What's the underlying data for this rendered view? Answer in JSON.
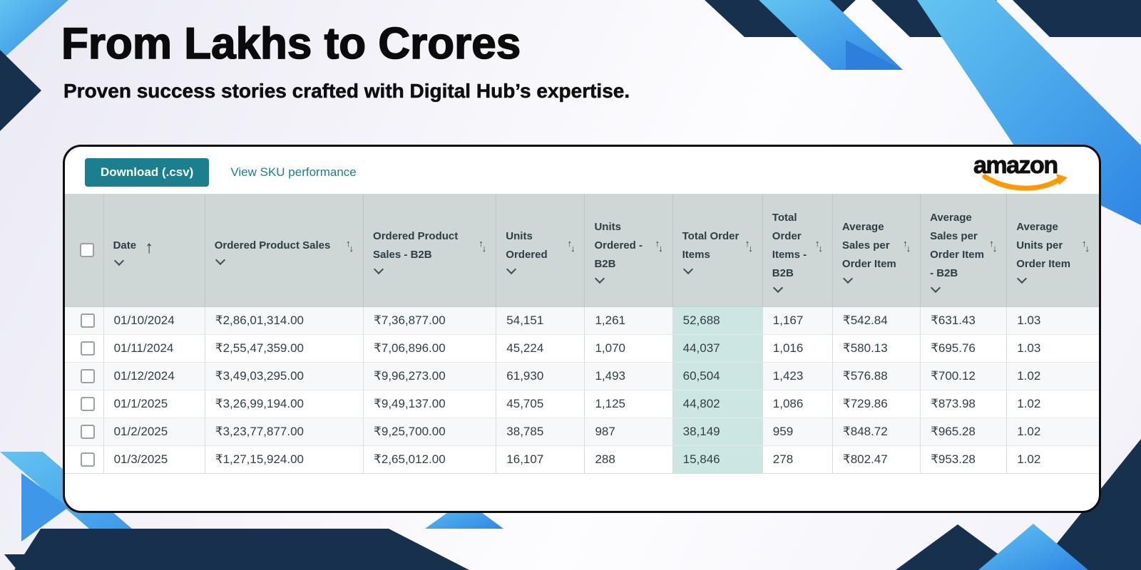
{
  "header": {
    "title": "From Lakhs to Crores",
    "subtitle": "Proven success stories crafted with Digital Hub’s expertise."
  },
  "toolbar": {
    "download_label": "Download (.csv)",
    "view_sku_label": "View SKU performance",
    "brand_wordmark": "amazon"
  },
  "table": {
    "columns": [
      {
        "key": "select",
        "label": "",
        "type": "checkbox"
      },
      {
        "key": "date",
        "label": "Date",
        "sorted": "asc"
      },
      {
        "key": "ordered_product_sales",
        "label": "Ordered Product Sales"
      },
      {
        "key": "ordered_product_sales_b2b",
        "label": "Ordered Product Sales - B2B"
      },
      {
        "key": "units_ordered",
        "label": "Units Ordered"
      },
      {
        "key": "units_ordered_b2b",
        "label": "Units Ordered - B2B"
      },
      {
        "key": "total_order_items",
        "label": "Total Order Items",
        "highlight": true
      },
      {
        "key": "total_order_items_b2b",
        "label": "Total Order Items - B2B"
      },
      {
        "key": "avg_sales_per_order_item",
        "label": "Average Sales per Order Item"
      },
      {
        "key": "avg_sales_per_order_item_b2b",
        "label": "Average Sales per Order Item - B2B"
      },
      {
        "key": "avg_units_per_order_item",
        "label": "Average Units per Order Item"
      }
    ],
    "rows": [
      {
        "date": "01/10/2024",
        "ordered_product_sales": "₹2,86,01,314.00",
        "ordered_product_sales_b2b": "₹7,36,877.00",
        "units_ordered": "54,151",
        "units_ordered_b2b": "1,261",
        "total_order_items": "52,688",
        "total_order_items_b2b": "1,167",
        "avg_sales_per_order_item": "₹542.84",
        "avg_sales_per_order_item_b2b": "₹631.43",
        "avg_units_per_order_item": "1.03"
      },
      {
        "date": "01/11/2024",
        "ordered_product_sales": "₹2,55,47,359.00",
        "ordered_product_sales_b2b": "₹7,06,896.00",
        "units_ordered": "45,224",
        "units_ordered_b2b": "1,070",
        "total_order_items": "44,037",
        "total_order_items_b2b": "1,016",
        "avg_sales_per_order_item": "₹580.13",
        "avg_sales_per_order_item_b2b": "₹695.76",
        "avg_units_per_order_item": "1.03"
      },
      {
        "date": "01/12/2024",
        "ordered_product_sales": "₹3,49,03,295.00",
        "ordered_product_sales_b2b": "₹9,96,273.00",
        "units_ordered": "61,930",
        "units_ordered_b2b": "1,493",
        "total_order_items": "60,504",
        "total_order_items_b2b": "1,423",
        "avg_sales_per_order_item": "₹576.88",
        "avg_sales_per_order_item_b2b": "₹700.12",
        "avg_units_per_order_item": "1.02"
      },
      {
        "date": "01/1/2025",
        "ordered_product_sales": "₹3,26,99,194.00",
        "ordered_product_sales_b2b": "₹9,49,137.00",
        "units_ordered": "45,705",
        "units_ordered_b2b": "1,125",
        "total_order_items": "44,802",
        "total_order_items_b2b": "1,086",
        "avg_sales_per_order_item": "₹729.86",
        "avg_sales_per_order_item_b2b": "₹873.98",
        "avg_units_per_order_item": "1.02"
      },
      {
        "date": "01/2/2025",
        "ordered_product_sales": "₹3,23,77,877.00",
        "ordered_product_sales_b2b": "₹9,25,700.00",
        "units_ordered": "38,785",
        "units_ordered_b2b": "987",
        "total_order_items": "38,149",
        "total_order_items_b2b": "959",
        "avg_sales_per_order_item": "₹848.72",
        "avg_sales_per_order_item_b2b": "₹965.28",
        "avg_units_per_order_item": "1.02"
      },
      {
        "date": "01/3/2025",
        "ordered_product_sales": "₹1,27,15,924.00",
        "ordered_product_sales_b2b": "₹2,65,012.00",
        "units_ordered": "16,107",
        "units_ordered_b2b": "288",
        "total_order_items": "15,846",
        "total_order_items_b2b": "278",
        "avg_sales_per_order_item": "₹802.47",
        "avg_sales_per_order_item_b2b": "₹953.28",
        "avg_units_per_order_item": "1.02"
      }
    ]
  },
  "colors": {
    "accent_teal": "#1A7F8E",
    "table_header_bg": "#CED7D6",
    "highlight_column_bg": "#CBE6E3",
    "decor_navy": "#16304D",
    "decor_light_blue": "#63C4F0",
    "decor_blue": "#2E7FDD",
    "amazon_orange": "#FF9900"
  }
}
